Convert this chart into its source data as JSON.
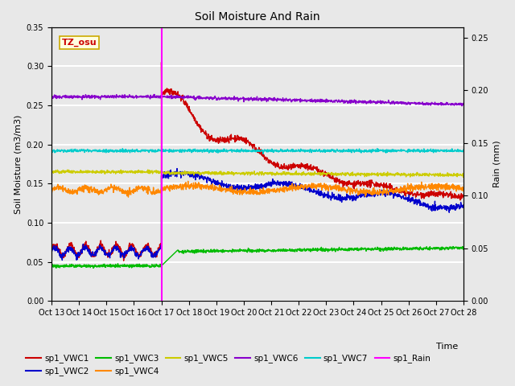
{
  "title": "Soil Moisture And Rain",
  "xlabel": "Time",
  "ylabel_left": "Soil Moisture (m3/m3)",
  "ylabel_right": "Rain (mm)",
  "annotation": "TZ_osu",
  "ylim_left": [
    0.0,
    0.35
  ],
  "ylim_right": [
    0.0,
    0.26
  ],
  "bg_color": "#e8e8e8",
  "vline_day": 4,
  "vline_color": "#ff00ff",
  "colors": {
    "VWC1": "#cc0000",
    "VWC2": "#0000cc",
    "VWC3": "#00bb00",
    "VWC4": "#ff8800",
    "VWC5": "#cccc00",
    "VWC6": "#8800cc",
    "VWC7": "#00cccc",
    "Rain": "#ff00ff"
  },
  "tick_labels": [
    "Oct 13",
    "Oct 14",
    "Oct 15",
    "Oct 16",
    "Oct 17",
    "Oct 18",
    "Oct 19",
    "Oct 20",
    "Oct 21",
    "Oct 22",
    "Oct 23",
    "Oct 24",
    "Oct 25",
    "Oct 26",
    "Oct 27",
    "Oct 28"
  ],
  "legend_row1": [
    "sp1_VWC1",
    "sp1_VWC2",
    "sp1_VWC3",
    "sp1_VWC4",
    "sp1_VWC5",
    "sp1_VWC6"
  ],
  "legend_row2": [
    "sp1_VWC7",
    "sp1_Rain"
  ]
}
